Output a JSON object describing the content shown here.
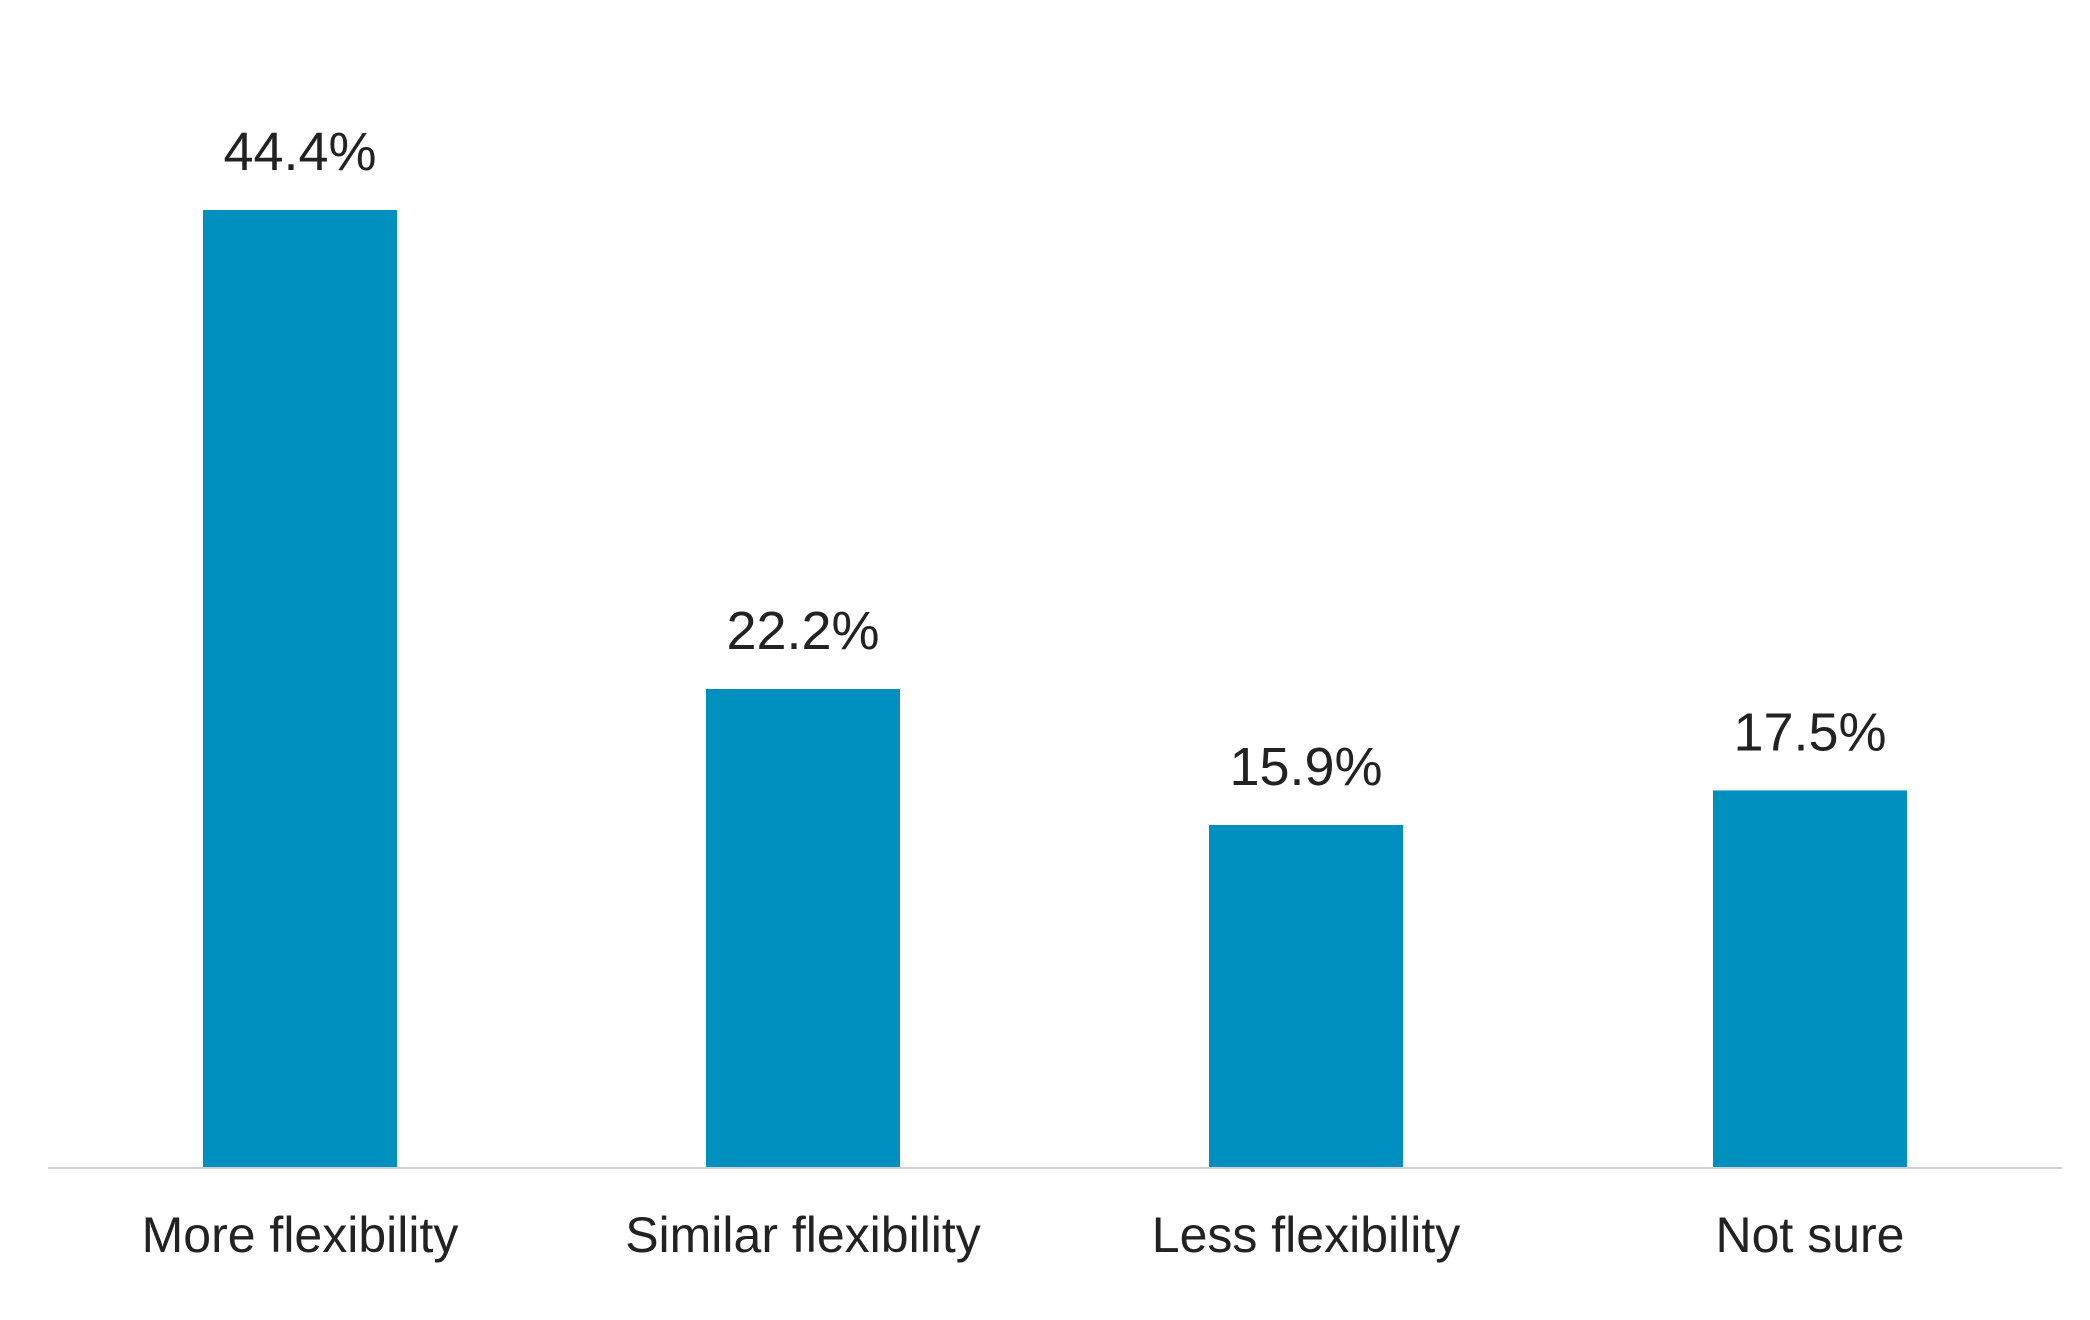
{
  "chart_data": {
    "type": "bar",
    "categories": [
      "More flexibility",
      "Similar flexibility",
      "Less flexibility",
      "Not sure"
    ],
    "values": [
      44.4,
      22.2,
      15.9,
      17.5
    ],
    "value_labels": [
      "44.4%",
      "22.2%",
      "15.9%",
      "17.5%"
    ],
    "title": "",
    "xlabel": "",
    "ylabel": "",
    "ylim": [
      0,
      44.4
    ],
    "grid": false,
    "legend": "none",
    "bar_color": "#0090C0",
    "axis_color": "#D0D0D0",
    "text_color": "#222222"
  }
}
